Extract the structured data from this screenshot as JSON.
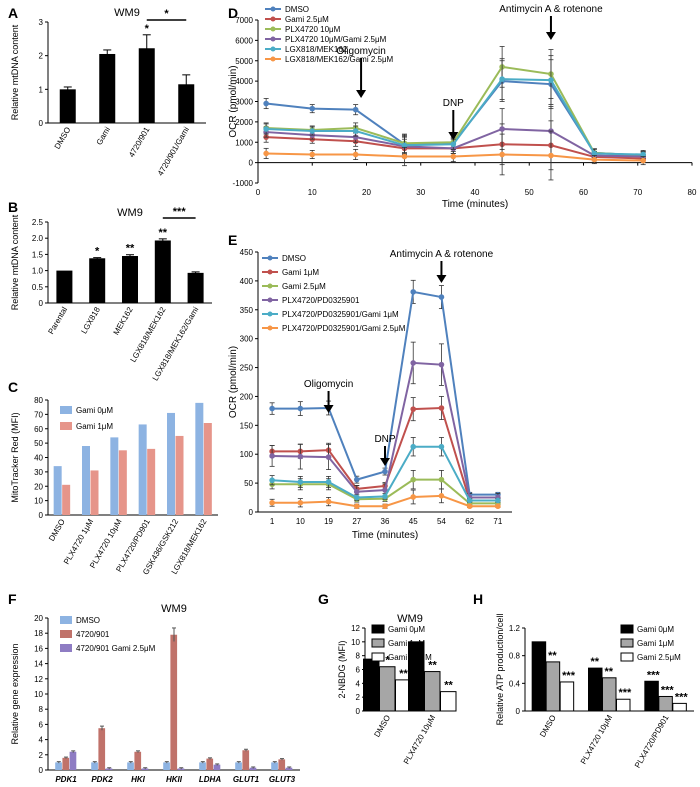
{
  "chart_data": [
    {
      "panel": "A",
      "type": "bar",
      "title": "WM9",
      "ylabel": "Relative mtDNA content",
      "ylim": [
        0,
        3
      ],
      "yticks": [
        0,
        1,
        2,
        3
      ],
      "categories": [
        "DMSO",
        "Gami",
        "4720/901",
        "4720/901/Gami"
      ],
      "values": [
        1.0,
        2.05,
        2.22,
        1.15
      ],
      "errors": [
        0.07,
        0.12,
        0.4,
        0.28
      ],
      "bar_stars": [
        "",
        "",
        "*",
        ""
      ],
      "bracket": {
        "from": 2,
        "to": 3,
        "label": "*"
      }
    },
    {
      "panel": "B",
      "type": "bar",
      "title": "WM9",
      "ylabel": "Relative mtDNA content",
      "ylim": [
        0,
        2.5
      ],
      "yticks": [
        "0",
        "0.5",
        "1.0",
        "1.5",
        "2.0",
        "2.5"
      ],
      "categories": [
        "Parental",
        "LGX818",
        "MEK162",
        "LGX818/MEK162",
        "LGX818/MEK162/Gami"
      ],
      "values": [
        1.0,
        1.38,
        1.45,
        1.93,
        0.93
      ],
      "errors": [
        0.0,
        0.02,
        0.04,
        0.05,
        0.03
      ],
      "bar_stars": [
        "",
        "*",
        "**",
        "**",
        ""
      ],
      "bracket": {
        "from": 3,
        "to": 4,
        "label": "***"
      }
    },
    {
      "panel": "C",
      "type": "bar",
      "ylabel": "MitoTracker Red (MFI)",
      "ylim": [
        0,
        80
      ],
      "yticks": [
        0,
        10,
        20,
        30,
        40,
        50,
        60,
        70,
        80
      ],
      "categories": [
        "DMSO",
        "PLX4720 1μM",
        "PLX4720 10μM",
        "PLX4720/PD901",
        "GSK436/GSK212",
        "LGX818/MEK162"
      ],
      "series": [
        {
          "name": "Gami 0μM",
          "values": [
            34,
            48,
            54,
            63,
            71,
            78
          ],
          "color": "#8db3e2"
        },
        {
          "name": "Gami 1μM",
          "values": [
            21,
            31,
            45,
            46,
            55,
            64
          ],
          "color": "#e6958a"
        }
      ]
    },
    {
      "panel": "D",
      "type": "line",
      "ylabel": "OCR (pmol/min)",
      "xlabel": "Time (minutes)",
      "xlim": [
        0,
        80
      ],
      "ylim": [
        -1000,
        7000
      ],
      "xticks": [
        0,
        10,
        20,
        30,
        40,
        50,
        60,
        70,
        80
      ],
      "yticks": [
        -1000,
        0,
        1000,
        2000,
        3000,
        4000,
        5000,
        6000,
        7000
      ],
      "x": [
        1.5,
        10,
        18,
        27,
        36,
        45,
        54,
        62,
        71
      ],
      "series": [
        {
          "name": "DMSO",
          "color": "#4f81bd",
          "values": [
            2900,
            2650,
            2600,
            900,
            950,
            4000,
            3850,
            480,
            350
          ]
        },
        {
          "name": "Gami 2.5μM",
          "color": "#c0504d",
          "values": [
            1250,
            1150,
            1050,
            700,
            700,
            900,
            850,
            280,
            200
          ]
        },
        {
          "name": "PLX4720 10μM",
          "color": "#9bbb59",
          "values": [
            1700,
            1600,
            1700,
            950,
            1000,
            4700,
            4350,
            480,
            350
          ]
        },
        {
          "name": "PLX4720 10μM/Gami 2.5μM",
          "color": "#8064a2",
          "values": [
            1500,
            1350,
            1250,
            800,
            700,
            1650,
            1550,
            350,
            300
          ]
        },
        {
          "name": "LGX818/MEK162",
          "color": "#4bacc6",
          "values": [
            1650,
            1550,
            1550,
            850,
            900,
            4100,
            4050,
            450,
            400
          ]
        },
        {
          "name": "LGX818/MEK162/Gami 2.5μM",
          "color": "#f79646",
          "values": [
            450,
            400,
            400,
            300,
            300,
            400,
            350,
            150,
            100
          ]
        }
      ],
      "errors": [
        250,
        200,
        250,
        450,
        250,
        1000,
        1200,
        200,
        200
      ],
      "annotations": [
        {
          "text": "Oligomycin",
          "x": 19
        },
        {
          "text": "DNP",
          "x": 36
        },
        {
          "text": "Antimycin A & rotenone",
          "x": 54
        }
      ]
    },
    {
      "panel": "E",
      "type": "line",
      "ylabel": "OCR (pmol/min)",
      "xlabel": "Time (minutes)",
      "ylim": [
        0,
        450
      ],
      "yticks": [
        0,
        50,
        100,
        150,
        200,
        250,
        300,
        350,
        400,
        450
      ],
      "categories": [
        "1",
        "10",
        "19",
        "27",
        "36",
        "45",
        "54",
        "62",
        "71"
      ],
      "series": [
        {
          "name": "DMSO",
          "color": "#4f81bd",
          "values": [
            179,
            179,
            180,
            56,
            70,
            381,
            372,
            30,
            30
          ]
        },
        {
          "name": "Gami 1μM",
          "color": "#c0504d",
          "values": [
            105,
            105,
            107,
            40,
            45,
            178,
            180,
            20,
            20
          ]
        },
        {
          "name": "Gami 2.5μM",
          "color": "#9bbb59",
          "values": [
            48,
            48,
            48,
            22,
            23,
            56,
            56,
            15,
            15
          ]
        },
        {
          "name": "PLX4720/PD0325901",
          "color": "#8064a2",
          "values": [
            97,
            96,
            95,
            35,
            38,
            258,
            255,
            25,
            25
          ]
        },
        {
          "name": "PLX4720/PD0325901/Gami 1μM",
          "color": "#4bacc6",
          "values": [
            55,
            52,
            52,
            25,
            27,
            113,
            113,
            20,
            20
          ]
        },
        {
          "name": "PLX4720/PD0325901/Gami 2.5μM",
          "color": "#f79646",
          "values": [
            16,
            16,
            18,
            10,
            10,
            26,
            28,
            10,
            10
          ]
        }
      ],
      "errors": [
        10,
        12,
        12,
        6,
        6,
        20,
        20,
        4,
        4
      ],
      "annotations": [
        {
          "text": "Oligomycin",
          "x": 2
        },
        {
          "text": "DNP",
          "x": 4
        },
        {
          "text": "Antimycin A & rotenone",
          "x": 6
        }
      ]
    },
    {
      "panel": "F",
      "type": "bar",
      "title": "WM9",
      "ylabel": "Relative gene expression",
      "ylim": [
        0,
        20
      ],
      "yticks": [
        0,
        2,
        4,
        6,
        8,
        10,
        12,
        14,
        16,
        18,
        20
      ],
      "categories": [
        "PDK1",
        "PDK2",
        "HKI",
        "HKII",
        "LDHA",
        "GLUT1",
        "GLUT3"
      ],
      "series": [
        {
          "name": "DMSO",
          "color": "#8db3e2",
          "values": [
            1,
            1,
            1,
            1,
            1,
            1,
            1
          ]
        },
        {
          "name": "4720/901",
          "color": "#c0726a",
          "values": [
            1.6,
            5.5,
            2.4,
            17.8,
            1.5,
            2.6,
            1.4
          ]
        },
        {
          "name": "4720/901 Gami 2.5μM",
          "color": "#8e7cc3",
          "values": [
            2.4,
            0.2,
            0.2,
            0.2,
            0.7,
            0.3,
            0.3
          ]
        }
      ]
    },
    {
      "panel": "G",
      "type": "bar",
      "title": "WM9",
      "ylabel": "2-NBDG (MFI)",
      "ylim": [
        0,
        12
      ],
      "yticks": [
        0,
        2,
        4,
        6,
        8,
        10,
        12
      ],
      "categories": [
        "DMSO",
        "PLX4720 10μM"
      ],
      "series": [
        {
          "name": "Gami 0μM",
          "color": "#000000",
          "values": [
            7.5,
            10.0
          ],
          "stars": [
            "",
            ""
          ]
        },
        {
          "name": "Gami 1μM",
          "color": "#a6a6a6",
          "values": [
            6.4,
            5.7
          ],
          "stars": [
            "*",
            "**"
          ]
        },
        {
          "name": "Gami 2.5μM",
          "color": "#ffffff",
          "values": [
            4.5,
            2.8
          ],
          "stars": [
            "**",
            "**"
          ]
        }
      ]
    },
    {
      "panel": "H",
      "type": "bar",
      "ylabel": "Relative ATP production/cell",
      "ylim": [
        0,
        1.2
      ],
      "yticks": [
        "0",
        "0.4",
        "0.8",
        "1.2"
      ],
      "categories": [
        "DMSO",
        "PLX4720 10μM",
        "PLX4720/PD901"
      ],
      "series": [
        {
          "name": "Gami 0μM",
          "color": "#000000",
          "values": [
            1.0,
            0.62,
            0.43
          ],
          "stars": [
            "",
            "**",
            "***"
          ]
        },
        {
          "name": "Gami 1μM",
          "color": "#a6a6a6",
          "values": [
            0.71,
            0.48,
            0.21
          ],
          "stars": [
            "**",
            "**",
            "***"
          ]
        },
        {
          "name": "Gami 2.5μM",
          "color": "#ffffff",
          "values": [
            0.42,
            0.17,
            0.11
          ],
          "stars": [
            "***",
            "***",
            "***"
          ]
        }
      ]
    }
  ]
}
